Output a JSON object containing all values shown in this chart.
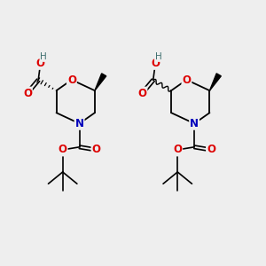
{
  "bg_color": "#eeeeee",
  "atom_colors": {
    "O": "#dd0000",
    "N": "#0000bb",
    "C": "#000000",
    "H": "#407070"
  },
  "bond_color": "#000000",
  "figsize": [
    3.0,
    3.0
  ],
  "dpi": 100
}
